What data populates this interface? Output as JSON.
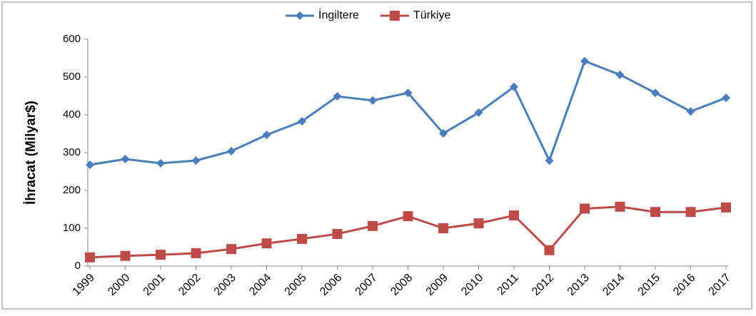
{
  "chart_data": {
    "type": "line",
    "ylabel": "İhracat (Milyar$)",
    "categories": [
      "1999",
      "2000",
      "2001",
      "2002",
      "2003",
      "2004",
      "2005",
      "2006",
      "2007",
      "2008",
      "2009",
      "2010",
      "2011",
      "2012",
      "2013",
      "2014",
      "2015",
      "2016",
      "2017"
    ],
    "series": [
      {
        "name": "İngiltere",
        "color": "#4a7ebb",
        "marker": "diamond",
        "values": [
          268,
          283,
          272,
          279,
          304,
          347,
          383,
          449,
          438,
          458,
          351,
          406,
          474,
          279,
          542,
          506,
          458,
          409,
          445
        ]
      },
      {
        "name": "Türkiye",
        "color": "#be4b48",
        "marker": "square",
        "values": [
          23,
          27,
          30,
          34,
          45,
          60,
          72,
          85,
          106,
          132,
          100,
          113,
          134,
          42,
          152,
          157,
          143,
          143,
          155
        ]
      }
    ],
    "ylim": [
      0,
      600
    ],
    "yticks": [
      0,
      100,
      200,
      300,
      400,
      500,
      600
    ],
    "grid": false,
    "legend": "top"
  }
}
